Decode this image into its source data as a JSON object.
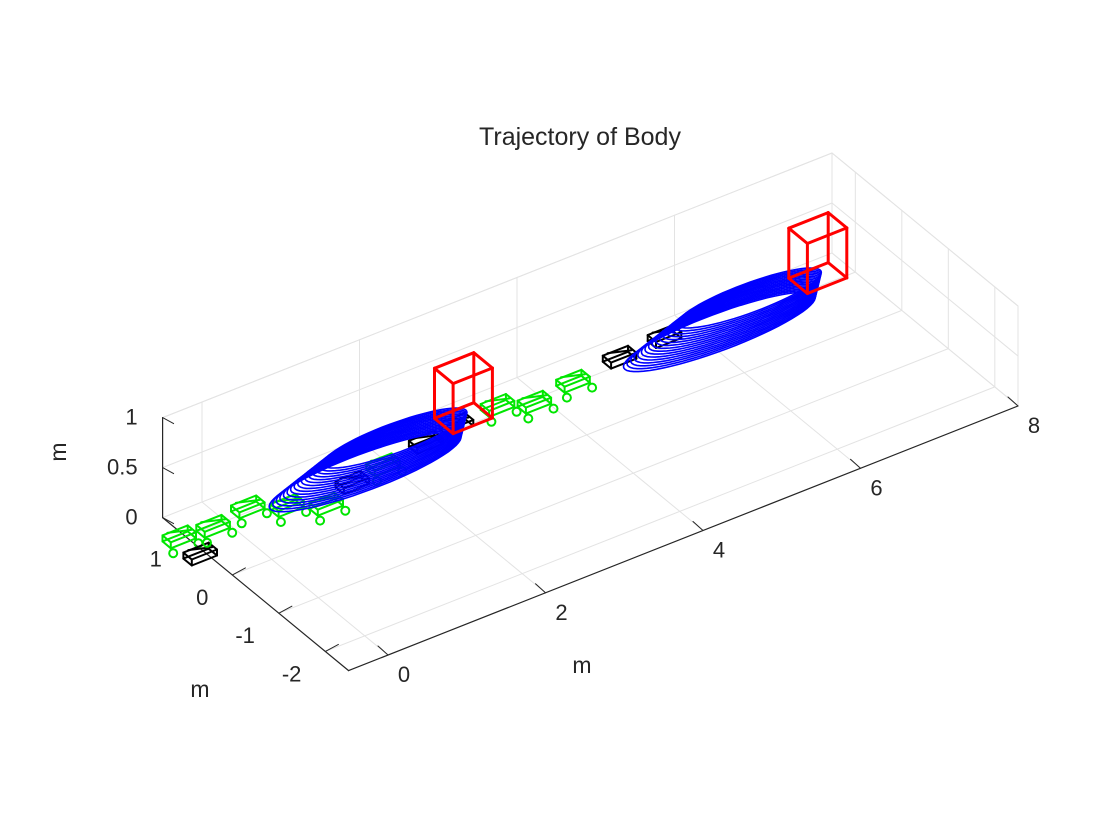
{
  "chart_data": {
    "type": "line3d",
    "title": "Trajectory of Body",
    "xlabel": "m",
    "ylabel": "m",
    "zlabel": "m",
    "xlim": [
      -0.5,
      8
    ],
    "ylim": [
      -2.5,
      1.5
    ],
    "zlim": [
      0,
      1
    ],
    "x_ticks": [
      "0",
      "2",
      "4",
      "6",
      "8"
    ],
    "y_ticks": [
      "-2",
      "-1",
      "0",
      "1"
    ],
    "z_ticks": [
      "0",
      "0.5",
      "1"
    ],
    "grid": true,
    "colors": {
      "trajectory": "#0000ff",
      "body": "#ff0000",
      "foot_frames_green": "#00e600",
      "foot_frames_black": "#000000",
      "grid": "#e3e3e3",
      "axis": "#262626"
    },
    "series": [
      {
        "kind": "ellipse-sweep",
        "center_x": 1.45,
        "center_y": 0.45,
        "semi_x": 1.2,
        "semi_y": 0.35,
        "z_min": 0.25,
        "z_max": 0.5,
        "rings": 16
      },
      {
        "kind": "ellipse-sweep",
        "center_x": 5.95,
        "center_y": 0.45,
        "semi_x": 1.2,
        "semi_y": 0.35,
        "z_min": 0.25,
        "z_max": 0.5,
        "rings": 16
      }
    ],
    "body_boxes": [
      {
        "x": [
          2.45,
          2.95
        ],
        "y": [
          0.25,
          0.65
        ],
        "z": [
          0.4,
          0.9
        ]
      },
      {
        "x": [
          6.95,
          7.45
        ],
        "y": [
          0.25,
          0.65
        ],
        "z": [
          0.4,
          0.9
        ]
      }
    ],
    "foot_frames": [
      {
        "x": -0.75,
        "y": 0.9,
        "color": "green"
      },
      {
        "x": -0.75,
        "y": 0.45,
        "color": "black"
      },
      {
        "x": -0.35,
        "y": 0.85,
        "color": "green"
      },
      {
        "x": 0.15,
        "y": 0.95,
        "color": "green"
      },
      {
        "x": 0.5,
        "y": 0.7,
        "color": "green"
      },
      {
        "x": 0.85,
        "y": 0.45,
        "color": "green"
      },
      {
        "x": 1.3,
        "y": 0.65,
        "color": "black"
      },
      {
        "x": 1.75,
        "y": 0.75,
        "color": "green"
      },
      {
        "x": 2.35,
        "y": 0.85,
        "color": "black"
      },
      {
        "x": 2.8,
        "y": 0.95,
        "color": "black"
      },
      {
        "x": 3.35,
        "y": 1.0,
        "color": "green"
      },
      {
        "x": 3.7,
        "y": 0.8,
        "color": "green"
      },
      {
        "x": 4.25,
        "y": 0.9,
        "color": "green"
      },
      {
        "x": 4.9,
        "y": 1.0,
        "color": "black"
      },
      {
        "x": 5.5,
        "y": 1.05,
        "color": "black"
      }
    ]
  }
}
